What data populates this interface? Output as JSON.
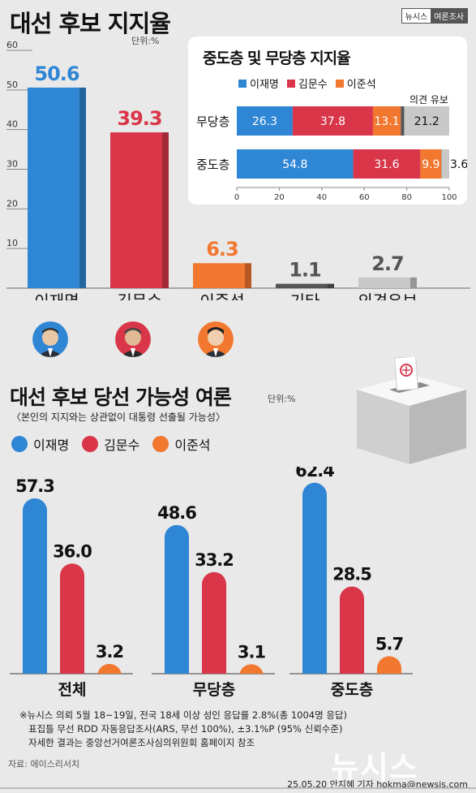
{
  "header": {
    "title": "대선 후보 지지율",
    "unit": "단위:%",
    "badge_left": "뉴시스",
    "badge_right": "여론조사"
  },
  "inset": {
    "title": "중도층 및 무당층 지지율",
    "side_label": "의견 유보"
  },
  "section2": {
    "title": "대선 후보 당선 가능성 여론",
    "unit": "단위:%",
    "subtitle": "〈본인의 지지와는 상관없이 대통령 선출될 가능성〉"
  },
  "colors": {
    "lee_jm": "#2f86d4",
    "kim_ms": "#d9364a",
    "lee_js": "#f2772f",
    "others": "#555555",
    "reserved": "#c8c8c8"
  },
  "chart_data": [
    {
      "type": "bar",
      "categories": [
        "이재명",
        "김문수",
        "이준석",
        "기타\n인물",
        "의견유보"
      ],
      "values": [
        50.6,
        39.3,
        6.3,
        1.1,
        2.7
      ],
      "yticks": [
        10,
        20,
        30,
        40,
        50,
        60
      ],
      "ylim": [
        0,
        60
      ],
      "title": "대선 후보 지지율"
    },
    {
      "type": "bar",
      "stacked": true,
      "orientation": "horizontal",
      "categories": [
        "무당층",
        "중도층"
      ],
      "series": [
        {
          "name": "이재명",
          "values": [
            26.3,
            54.8
          ]
        },
        {
          "name": "김문수",
          "values": [
            37.8,
            31.6
          ]
        },
        {
          "name": "이준석",
          "values": [
            13.1,
            9.9
          ]
        },
        {
          "values": [
            1.6,
            0.1
          ]
        },
        {
          "values": [
            21.2,
            3.6
          ]
        }
      ],
      "xticks": [
        0,
        20,
        40,
        60,
        80,
        100
      ],
      "xlim": [
        0,
        100
      ],
      "title": "중도층 및 무당층 지지율"
    },
    {
      "type": "bar",
      "categories": [
        "전체",
        "무당층",
        "중도층"
      ],
      "series": [
        {
          "name": "이재명",
          "values": [
            57.3,
            48.6,
            62.4
          ]
        },
        {
          "name": "김문수",
          "values": [
            36.0,
            33.2,
            28.5
          ]
        },
        {
          "name": "이준석",
          "values": [
            3.2,
            3.1,
            5.7
          ]
        }
      ],
      "ylim": [
        0,
        65
      ],
      "title": "대선 후보 당선 가능성 여론"
    }
  ],
  "footer": {
    "notes": [
      "※뉴시스 의뢰 5월 18~19일, 전국 18세 이상 성인 응답률 2.8%(총 1004명 응답)",
      "표집틀 무선 RDD  자동응답조사(ARS, 무선 100%), ±3.1%P (95% 신뢰수준)",
      "자세한 결과는 중앙선거여론조사심의위원회 홈페이지 참조"
    ],
    "source": "자료: 에이스리서치",
    "watermark": "뉴시스",
    "credit": "25.05.20 안지혜 기자 hokma@newsis.com"
  }
}
